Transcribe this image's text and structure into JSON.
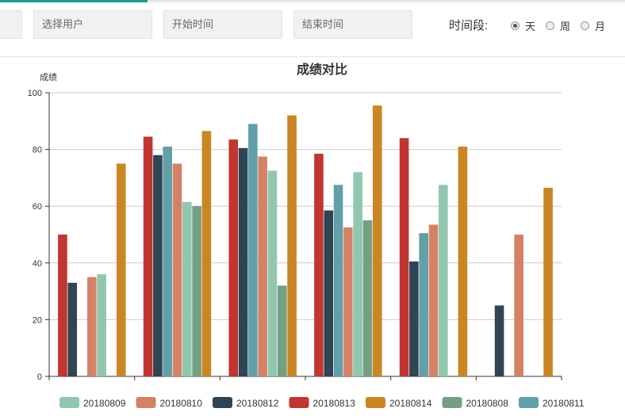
{
  "filters": {
    "first_placeholder": "",
    "user_placeholder": "选择用户",
    "start_placeholder": "开始时间",
    "end_placeholder": "结束时间"
  },
  "period": {
    "label": "时间段:",
    "options": [
      {
        "label": "天",
        "checked": true
      },
      {
        "label": "周",
        "checked": false
      },
      {
        "label": "月",
        "checked": false
      }
    ]
  },
  "colors": {
    "accent": "#1a9e8c"
  },
  "chart_data": {
    "type": "bar",
    "title": "成绩对比",
    "ylabel": "成绩",
    "xlabel": "",
    "ylim": [
      0,
      100
    ],
    "yticks": [
      0,
      20,
      40,
      60,
      80,
      100
    ],
    "grid": true,
    "legend_position": "bottom",
    "categories": [
      "",
      "",
      "",
      "",
      "",
      ""
    ],
    "series": [
      {
        "name": "20180813",
        "color": "#c23531",
        "values": [
          50,
          84.5,
          83.5,
          78.5,
          84,
          null
        ]
      },
      {
        "name": "20180812",
        "color": "#2f4554",
        "values": [
          33,
          78,
          80.5,
          58.5,
          40.5,
          25
        ]
      },
      {
        "name": "20180811",
        "color": "#61a0a8",
        "values": [
          null,
          81,
          89,
          67.5,
          50.5,
          null
        ]
      },
      {
        "name": "20180810",
        "color": "#d48265",
        "values": [
          35,
          75,
          77.5,
          52.5,
          53.5,
          50
        ]
      },
      {
        "name": "20180809",
        "color": "#91c7ae",
        "values": [
          36,
          61.5,
          72.5,
          72,
          67.5,
          null
        ]
      },
      {
        "name": "20180808",
        "color": "#749f83",
        "values": [
          null,
          60,
          32,
          55,
          null,
          null
        ]
      },
      {
        "name": "20180814",
        "color": "#ca8622",
        "values": [
          75,
          86.5,
          92,
          95.5,
          81,
          66.5
        ]
      }
    ],
    "legend_order": [
      "20180809",
      "20180810",
      "20180812",
      "20180813",
      "20180814",
      "20180808",
      "20180811"
    ]
  }
}
